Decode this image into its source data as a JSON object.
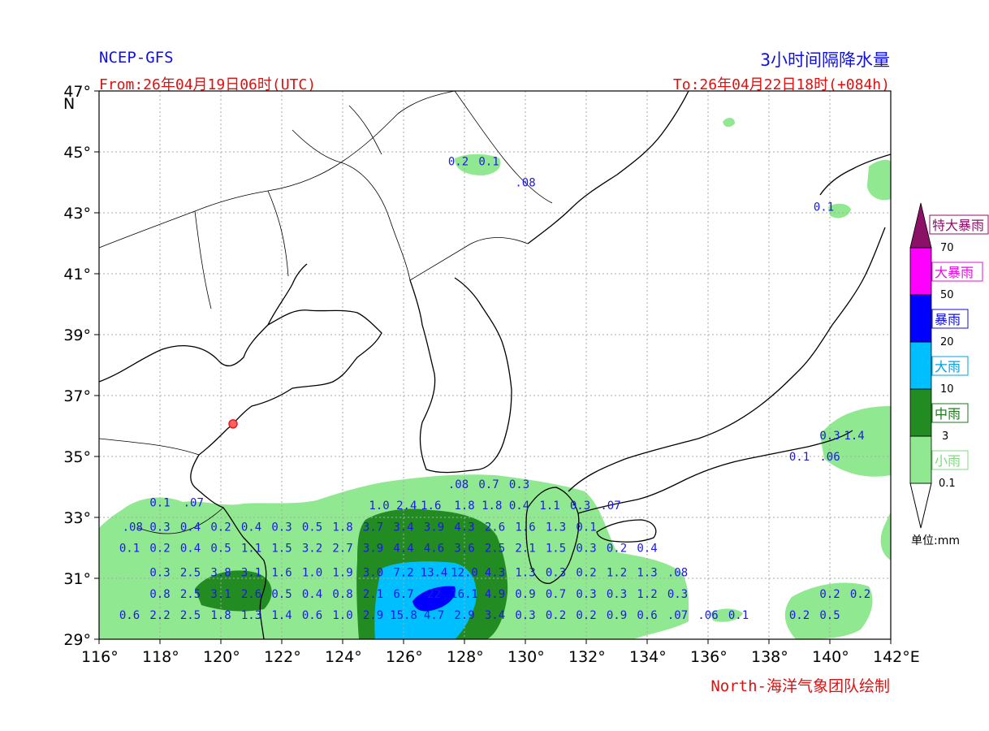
{
  "header": {
    "model": "NCEP-GFS",
    "product_title": "3小时间隔降水量",
    "from_time": "From:26年04月19日06时(UTC)",
    "to_time": "To:26年04月22日18时(+084h)"
  },
  "footer": {
    "credit": "North-海洋气象团队绘制"
  },
  "map": {
    "lon_range": [
      116,
      142
    ],
    "lat_range": [
      29,
      47
    ],
    "lon_ticks": [
      "116°",
      "118°",
      "120°",
      "122°",
      "124°",
      "126°",
      "128°",
      "130°",
      "132°",
      "134°",
      "136°",
      "138°",
      "140°",
      "142°E"
    ],
    "lat_ticks": [
      "29°",
      "31°",
      "33°",
      "35°",
      "37°",
      "39°",
      "41°",
      "43°",
      "45°",
      "47°"
    ],
    "north_label": "N",
    "grid": true,
    "station_marker": {
      "lon": 120.4,
      "lat": 36.07,
      "color": "#e02020"
    }
  },
  "legend": {
    "unit_label": "单位:mm",
    "tick_labels": [
      "0.1",
      "3",
      "10",
      "20",
      "50",
      "70"
    ],
    "categories": [
      {
        "label": "小雨",
        "color": "#90e890",
        "text_color": "#80d880"
      },
      {
        "label": "中雨",
        "color": "#228b22",
        "text_color": "#1a7a1a"
      },
      {
        "label": "大雨",
        "color": "#00bfff",
        "text_color": "#00a0e8"
      },
      {
        "label": "暴雨",
        "color": "#0000ff",
        "text_color": "#1010d0"
      },
      {
        "label": "大暴雨",
        "color": "#ff00ff",
        "text_color": "#e010e0"
      },
      {
        "label": "特大暴雨",
        "color": "#8b1068",
        "text_color": "#8b1068"
      }
    ]
  },
  "precip_values": [
    {
      "lon": 127.8,
      "lat": 44.7,
      "text": "0.2"
    },
    {
      "lon": 128.8,
      "lat": 44.7,
      "text": "0.1"
    },
    {
      "lon": 130.0,
      "lat": 44.0,
      "text": ".08"
    },
    {
      "lon": 139.8,
      "lat": 43.2,
      "text": "0.1"
    },
    {
      "lon": 140.0,
      "lat": 35.7,
      "text": "0.3"
    },
    {
      "lon": 140.8,
      "lat": 35.7,
      "text": "1.4"
    },
    {
      "lon": 139.0,
      "lat": 35.0,
      "text": "0.1"
    },
    {
      "lon": 140.0,
      "lat": 35.0,
      "text": ".06"
    },
    {
      "lon": 127.8,
      "lat": 34.1,
      "text": ".08"
    },
    {
      "lon": 128.8,
      "lat": 34.1,
      "text": "0.7"
    },
    {
      "lon": 129.8,
      "lat": 34.1,
      "text": "0.3"
    },
    {
      "lon": 118.0,
      "lat": 33.5,
      "text": "0.1"
    },
    {
      "lon": 119.1,
      "lat": 33.5,
      "text": ".07"
    },
    {
      "lon": 125.2,
      "lat": 33.4,
      "text": "1.0"
    },
    {
      "lon": 126.1,
      "lat": 33.4,
      "text": "2.4"
    },
    {
      "lon": 126.9,
      "lat": 33.4,
      "text": "1.6"
    },
    {
      "lon": 128.0,
      "lat": 33.4,
      "text": "1.8"
    },
    {
      "lon": 128.9,
      "lat": 33.4,
      "text": "1.8"
    },
    {
      "lon": 129.8,
      "lat": 33.4,
      "text": "0.4"
    },
    {
      "lon": 130.8,
      "lat": 33.4,
      "text": "1.1"
    },
    {
      "lon": 131.8,
      "lat": 33.4,
      "text": "0.3"
    },
    {
      "lon": 132.8,
      "lat": 33.4,
      "text": ".07"
    },
    {
      "lon": 117.1,
      "lat": 32.7,
      "text": ".08"
    },
    {
      "lon": 118.0,
      "lat": 32.7,
      "text": "0.3"
    },
    {
      "lon": 119.0,
      "lat": 32.7,
      "text": "0.4"
    },
    {
      "lon": 120.0,
      "lat": 32.7,
      "text": "0.2"
    },
    {
      "lon": 121.0,
      "lat": 32.7,
      "text": "0.4"
    },
    {
      "lon": 122.0,
      "lat": 32.7,
      "text": "0.3"
    },
    {
      "lon": 123.0,
      "lat": 32.7,
      "text": "0.5"
    },
    {
      "lon": 124.0,
      "lat": 32.7,
      "text": "1.8"
    },
    {
      "lon": 125.0,
      "lat": 32.7,
      "text": "3.7"
    },
    {
      "lon": 126.0,
      "lat": 32.7,
      "text": "3.4"
    },
    {
      "lon": 127.0,
      "lat": 32.7,
      "text": "3.9"
    },
    {
      "lon": 128.0,
      "lat": 32.7,
      "text": "4.3"
    },
    {
      "lon": 129.0,
      "lat": 32.7,
      "text": "2.6"
    },
    {
      "lon": 130.0,
      "lat": 32.7,
      "text": "1.6"
    },
    {
      "lon": 131.0,
      "lat": 32.7,
      "text": "1.3"
    },
    {
      "lon": 132.0,
      "lat": 32.7,
      "text": "0.1"
    },
    {
      "lon": 117.0,
      "lat": 32.0,
      "text": "0.1"
    },
    {
      "lon": 118.0,
      "lat": 32.0,
      "text": "0.2"
    },
    {
      "lon": 119.0,
      "lat": 32.0,
      "text": "0.4"
    },
    {
      "lon": 120.0,
      "lat": 32.0,
      "text": "0.5"
    },
    {
      "lon": 121.0,
      "lat": 32.0,
      "text": "1.1"
    },
    {
      "lon": 122.0,
      "lat": 32.0,
      "text": "1.5"
    },
    {
      "lon": 123.0,
      "lat": 32.0,
      "text": "3.2"
    },
    {
      "lon": 124.0,
      "lat": 32.0,
      "text": "2.7"
    },
    {
      "lon": 125.0,
      "lat": 32.0,
      "text": "3.9"
    },
    {
      "lon": 126.0,
      "lat": 32.0,
      "text": "4.4"
    },
    {
      "lon": 127.0,
      "lat": 32.0,
      "text": "4.6"
    },
    {
      "lon": 128.0,
      "lat": 32.0,
      "text": "3.6"
    },
    {
      "lon": 129.0,
      "lat": 32.0,
      "text": "2.5"
    },
    {
      "lon": 130.0,
      "lat": 32.0,
      "text": "2.1"
    },
    {
      "lon": 131.0,
      "lat": 32.0,
      "text": "1.5"
    },
    {
      "lon": 132.0,
      "lat": 32.0,
      "text": "0.3"
    },
    {
      "lon": 133.0,
      "lat": 32.0,
      "text": "0.2"
    },
    {
      "lon": 134.0,
      "lat": 32.0,
      "text": "0.4"
    },
    {
      "lon": 118.0,
      "lat": 31.2,
      "text": "0.3"
    },
    {
      "lon": 119.0,
      "lat": 31.2,
      "text": "2.5"
    },
    {
      "lon": 120.0,
      "lat": 31.2,
      "text": "3.8"
    },
    {
      "lon": 121.0,
      "lat": 31.2,
      "text": "3.1"
    },
    {
      "lon": 122.0,
      "lat": 31.2,
      "text": "1.6"
    },
    {
      "lon": 123.0,
      "lat": 31.2,
      "text": "1.0"
    },
    {
      "lon": 124.0,
      "lat": 31.2,
      "text": "1.9"
    },
    {
      "lon": 125.0,
      "lat": 31.2,
      "text": "3.0"
    },
    {
      "lon": 126.0,
      "lat": 31.2,
      "text": "7.2"
    },
    {
      "lon": 127.0,
      "lat": 31.2,
      "text": "13.4"
    },
    {
      "lon": 128.0,
      "lat": 31.2,
      "text": "12.0"
    },
    {
      "lon": 129.0,
      "lat": 31.2,
      "text": "4.3"
    },
    {
      "lon": 130.0,
      "lat": 31.2,
      "text": "1.3"
    },
    {
      "lon": 131.0,
      "lat": 31.2,
      "text": "0.3"
    },
    {
      "lon": 132.0,
      "lat": 31.2,
      "text": "0.2"
    },
    {
      "lon": 133.0,
      "lat": 31.2,
      "text": "1.2"
    },
    {
      "lon": 134.0,
      "lat": 31.2,
      "text": "1.3"
    },
    {
      "lon": 135.0,
      "lat": 31.2,
      "text": ".08"
    },
    {
      "lon": 118.0,
      "lat": 30.5,
      "text": "0.8"
    },
    {
      "lon": 119.0,
      "lat": 30.5,
      "text": "2.5"
    },
    {
      "lon": 120.0,
      "lat": 30.5,
      "text": "3.1"
    },
    {
      "lon": 121.0,
      "lat": 30.5,
      "text": "2.6"
    },
    {
      "lon": 122.0,
      "lat": 30.5,
      "text": "0.5"
    },
    {
      "lon": 123.0,
      "lat": 30.5,
      "text": "0.4"
    },
    {
      "lon": 124.0,
      "lat": 30.5,
      "text": "0.8"
    },
    {
      "lon": 125.0,
      "lat": 30.5,
      "text": "2.1"
    },
    {
      "lon": 126.0,
      "lat": 30.5,
      "text": "6.7"
    },
    {
      "lon": 127.0,
      "lat": 30.5,
      "text": "22"
    },
    {
      "lon": 128.0,
      "lat": 30.5,
      "text": "16.1"
    },
    {
      "lon": 129.0,
      "lat": 30.5,
      "text": "4.9"
    },
    {
      "lon": 130.0,
      "lat": 30.5,
      "text": "0.9"
    },
    {
      "lon": 131.0,
      "lat": 30.5,
      "text": "0.7"
    },
    {
      "lon": 132.0,
      "lat": 30.5,
      "text": "0.3"
    },
    {
      "lon": 133.0,
      "lat": 30.5,
      "text": "0.3"
    },
    {
      "lon": 134.0,
      "lat": 30.5,
      "text": "1.2"
    },
    {
      "lon": 135.0,
      "lat": 30.5,
      "text": "0.3"
    },
    {
      "lon": 140.0,
      "lat": 30.5,
      "text": "0.2"
    },
    {
      "lon": 141.0,
      "lat": 30.5,
      "text": "0.2"
    },
    {
      "lon": 117.0,
      "lat": 29.8,
      "text": "0.6"
    },
    {
      "lon": 118.0,
      "lat": 29.8,
      "text": "2.2"
    },
    {
      "lon": 119.0,
      "lat": 29.8,
      "text": "2.5"
    },
    {
      "lon": 120.0,
      "lat": 29.8,
      "text": "1.8"
    },
    {
      "lon": 121.0,
      "lat": 29.8,
      "text": "1.3"
    },
    {
      "lon": 122.0,
      "lat": 29.8,
      "text": "1.4"
    },
    {
      "lon": 123.0,
      "lat": 29.8,
      "text": "0.6"
    },
    {
      "lon": 124.0,
      "lat": 29.8,
      "text": "1.0"
    },
    {
      "lon": 125.0,
      "lat": 29.8,
      "text": "2.9"
    },
    {
      "lon": 126.0,
      "lat": 29.8,
      "text": "15.8"
    },
    {
      "lon": 127.0,
      "lat": 29.8,
      "text": "4.7"
    },
    {
      "lon": 128.0,
      "lat": 29.8,
      "text": "2.9"
    },
    {
      "lon": 129.0,
      "lat": 29.8,
      "text": "3.4"
    },
    {
      "lon": 130.0,
      "lat": 29.8,
      "text": "0.3"
    },
    {
      "lon": 131.0,
      "lat": 29.8,
      "text": "0.2"
    },
    {
      "lon": 132.0,
      "lat": 29.8,
      "text": "0.2"
    },
    {
      "lon": 133.0,
      "lat": 29.8,
      "text": "0.9"
    },
    {
      "lon": 134.0,
      "lat": 29.8,
      "text": "0.6"
    },
    {
      "lon": 135.0,
      "lat": 29.8,
      "text": ".07"
    },
    {
      "lon": 136.0,
      "lat": 29.8,
      "text": ".06"
    },
    {
      "lon": 137.0,
      "lat": 29.8,
      "text": "0.1"
    },
    {
      "lon": 139.0,
      "lat": 29.8,
      "text": "0.2"
    },
    {
      "lon": 140.0,
      "lat": 29.8,
      "text": "0.5"
    }
  ]
}
